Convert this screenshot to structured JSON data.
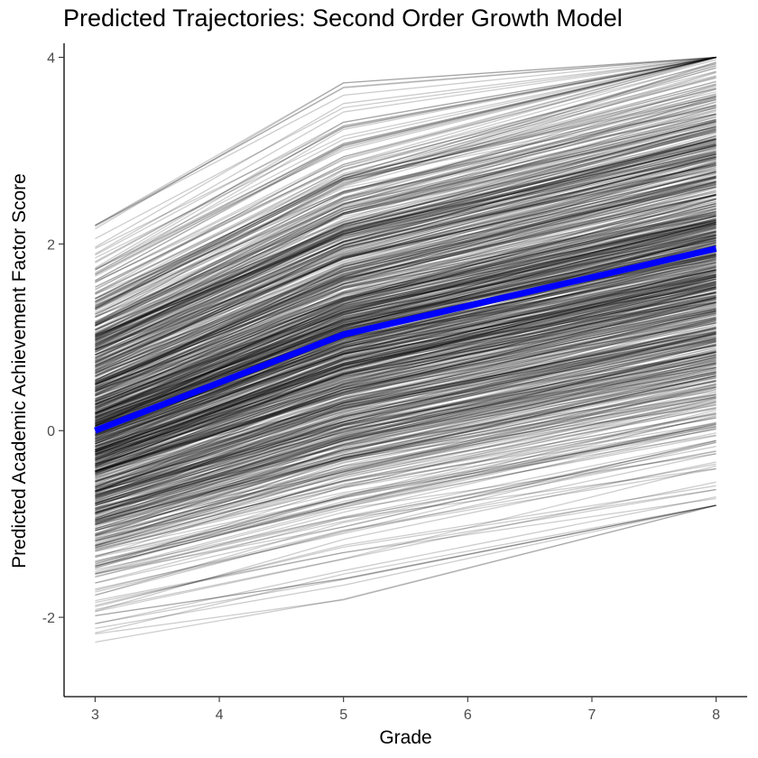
{
  "chart_data": {
    "type": "line",
    "title": "Predicted Trajectories: Second Order Growth Model",
    "xlabel": "Grade",
    "ylabel": "Predicted Academic Achievement Factor Score",
    "xlim": [
      2.75,
      8.25
    ],
    "ylim": [
      -2.85,
      4.15
    ],
    "x_ticks": [
      3,
      4,
      5,
      6,
      7,
      8
    ],
    "y_ticks": [
      -2,
      0,
      2,
      4
    ],
    "grid": false,
    "legend": "none",
    "x": [
      3,
      5,
      8
    ],
    "mean_trajectory": {
      "color": "#0000ff",
      "values": [
        0.0,
        1.03,
        1.95
      ]
    },
    "individual_trajectories": {
      "color": "#000000",
      "opacity": 0.2,
      "count": 900,
      "intercept_range": [
        -2.5,
        2.2
      ],
      "grade8_range": [
        -0.8,
        4.0
      ]
    }
  }
}
